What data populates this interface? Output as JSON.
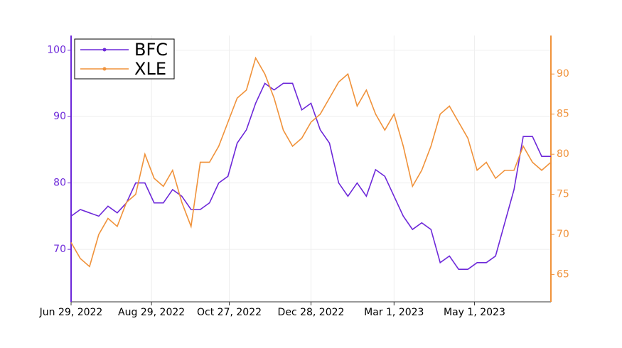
{
  "chart_data": {
    "type": "line",
    "x": [
      "2022-06-29",
      "2022-07-06",
      "2022-07-13",
      "2022-07-20",
      "2022-07-27",
      "2022-08-03",
      "2022-08-10",
      "2022-08-17",
      "2022-08-24",
      "2022-08-31",
      "2022-09-07",
      "2022-09-14",
      "2022-09-21",
      "2022-09-28",
      "2022-10-05",
      "2022-10-12",
      "2022-10-19",
      "2022-10-26",
      "2022-11-02",
      "2022-11-09",
      "2022-11-16",
      "2022-11-23",
      "2022-11-30",
      "2022-12-07",
      "2022-12-14",
      "2022-12-21",
      "2022-12-28",
      "2023-01-04",
      "2023-01-11",
      "2023-01-18",
      "2023-01-25",
      "2023-02-01",
      "2023-02-08",
      "2023-02-15",
      "2023-02-22",
      "2023-03-01",
      "2023-03-08",
      "2023-03-15",
      "2023-03-22",
      "2023-03-29",
      "2023-04-05",
      "2023-04-12",
      "2023-04-19",
      "2023-04-26",
      "2023-05-03",
      "2023-05-10",
      "2023-05-17",
      "2023-05-24",
      "2023-05-31",
      "2023-06-07",
      "2023-06-14",
      "2023-06-21",
      "2023-06-28"
    ],
    "series": [
      {
        "name": "BFC",
        "color": "#6d28d9",
        "axis": "y",
        "values": [
          75,
          76,
          75.5,
          75,
          76.5,
          75.5,
          77,
          80,
          80,
          77,
          77,
          79,
          78,
          76,
          76,
          77,
          80,
          81,
          86,
          88,
          92,
          95,
          94,
          95,
          95,
          91,
          92,
          88,
          86,
          80,
          78,
          80,
          78,
          82,
          81,
          78,
          75,
          73,
          74,
          73,
          68,
          69,
          67,
          67,
          68,
          68,
          69,
          74,
          79,
          87,
          87,
          84,
          84
        ]
      },
      {
        "name": "XLE",
        "color": "#f0923a",
        "axis": "y2",
        "values": [
          69,
          67,
          66,
          70,
          72,
          71,
          74,
          75,
          80,
          77,
          76,
          78,
          74,
          71,
          79,
          79,
          81,
          84,
          87,
          88,
          92,
          90,
          87,
          83,
          81,
          82,
          84,
          85,
          87,
          89,
          90,
          86,
          88,
          85,
          83,
          85,
          81,
          76,
          78,
          81,
          85,
          86,
          84,
          82,
          78,
          79,
          77,
          78,
          78,
          81,
          79,
          78,
          79
        ]
      }
    ],
    "xlim": [
      "2022-06-29",
      "2023-06-28"
    ],
    "xticks": [
      {
        "value": "2022-06-29",
        "label": "Jun 29, 2022"
      },
      {
        "value": "2022-08-29",
        "label": "Aug 29, 2022"
      },
      {
        "value": "2022-10-27",
        "label": "Oct 27, 2022"
      },
      {
        "value": "2022-12-28",
        "label": "Dec 28, 2022"
      },
      {
        "value": "2023-03-01",
        "label": "Mar 1, 2023"
      },
      {
        "value": "2023-05-01",
        "label": "May 1, 2023"
      }
    ],
    "ylim": [
      62.1,
      102.2
    ],
    "yticks": [
      70,
      80,
      90,
      100
    ],
    "y2lim": [
      61.6,
      94.8
    ],
    "y2ticks": [
      65,
      70,
      75,
      80,
      85,
      90
    ],
    "grid": true,
    "legend": "upper left"
  }
}
